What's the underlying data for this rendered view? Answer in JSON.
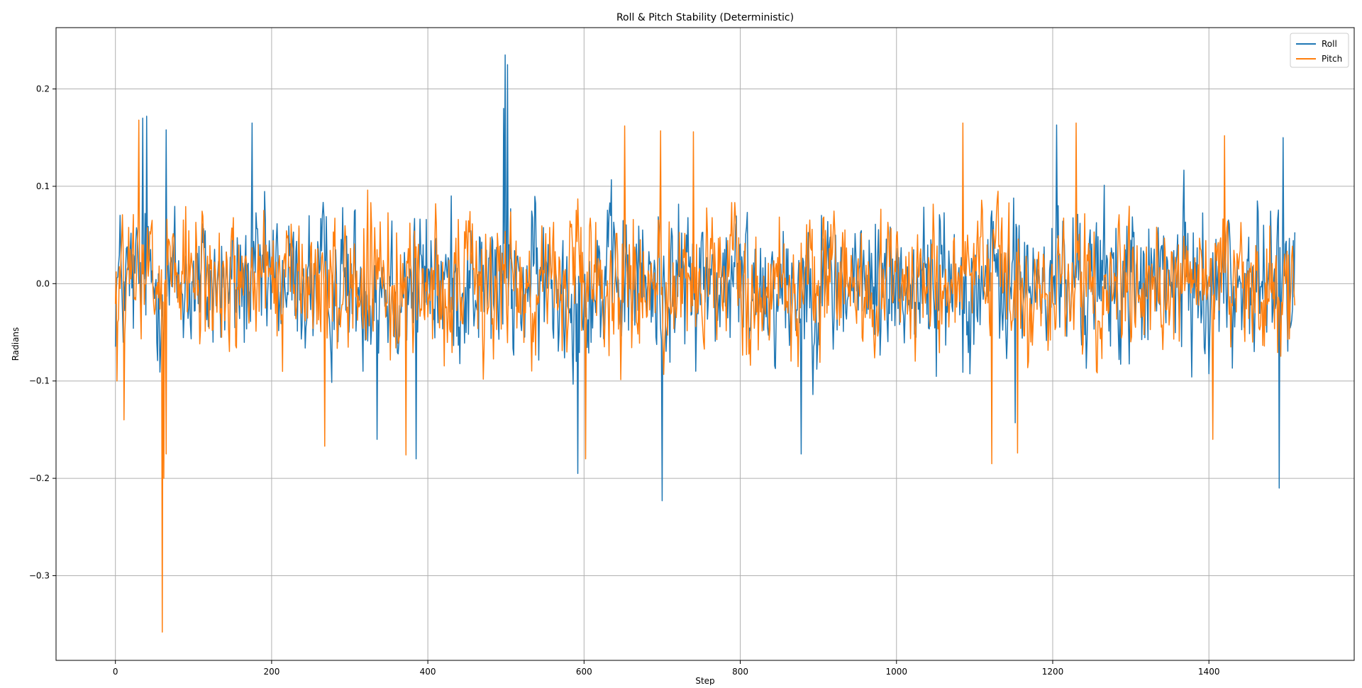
{
  "chart_data": {
    "type": "line",
    "title": "Roll & Pitch Stability (Deterministic)",
    "xlabel": "Step",
    "ylabel": "Radians",
    "xlim": [
      -76,
      1586
    ],
    "ylim": [
      -0.387,
      0.263
    ],
    "x_ticks": [
      0,
      200,
      400,
      600,
      800,
      1000,
      1200,
      1400
    ],
    "x_tick_labels": [
      "0",
      "200",
      "400",
      "600",
      "800",
      "1000",
      "1200",
      "1400"
    ],
    "y_ticks": [
      -0.3,
      -0.2,
      -0.1,
      0.0,
      0.1,
      0.2
    ],
    "y_tick_labels": [
      "−0.3",
      "−0.2",
      "−0.1",
      "0.0",
      "0.1",
      "0.2"
    ],
    "grid": true,
    "legend_position": "top-right",
    "x_range": [
      0,
      1510
    ],
    "series": [
      {
        "name": "Roll",
        "color": "#1f77b4",
        "amplitude_envelope": [
          -0.13,
          0.13
        ],
        "extremes": [
          {
            "x": 35,
            "y": 0.17
          },
          {
            "x": 40,
            "y": 0.172
          },
          {
            "x": 65,
            "y": 0.158
          },
          {
            "x": 175,
            "y": 0.165
          },
          {
            "x": 335,
            "y": -0.16
          },
          {
            "x": 385,
            "y": -0.18
          },
          {
            "x": 497,
            "y": 0.18
          },
          {
            "x": 499,
            "y": 0.235
          },
          {
            "x": 502,
            "y": 0.225
          },
          {
            "x": 592,
            "y": -0.195
          },
          {
            "x": 700,
            "y": -0.223
          },
          {
            "x": 878,
            "y": -0.175
          },
          {
            "x": 1152,
            "y": -0.143
          },
          {
            "x": 1205,
            "y": 0.163
          },
          {
            "x": 1490,
            "y": -0.21
          },
          {
            "x": 1495,
            "y": 0.15
          }
        ]
      },
      {
        "name": "Pitch",
        "color": "#ff7f0e",
        "amplitude_envelope": [
          -0.12,
          0.12
        ],
        "extremes": [
          {
            "x": 2,
            "y": -0.1
          },
          {
            "x": 11,
            "y": -0.14
          },
          {
            "x": 30,
            "y": 0.168
          },
          {
            "x": 60,
            "y": -0.358
          },
          {
            "x": 62,
            "y": -0.2
          },
          {
            "x": 65,
            "y": -0.175
          },
          {
            "x": 268,
            "y": -0.167
          },
          {
            "x": 372,
            "y": -0.176
          },
          {
            "x": 602,
            "y": -0.18
          },
          {
            "x": 652,
            "y": 0.162
          },
          {
            "x": 698,
            "y": 0.157
          },
          {
            "x": 740,
            "y": 0.156
          },
          {
            "x": 1085,
            "y": 0.165
          },
          {
            "x": 1122,
            "y": -0.185
          },
          {
            "x": 1155,
            "y": -0.174
          },
          {
            "x": 1230,
            "y": 0.165
          },
          {
            "x": 1405,
            "y": -0.16
          },
          {
            "x": 1420,
            "y": 0.152
          }
        ]
      }
    ]
  }
}
